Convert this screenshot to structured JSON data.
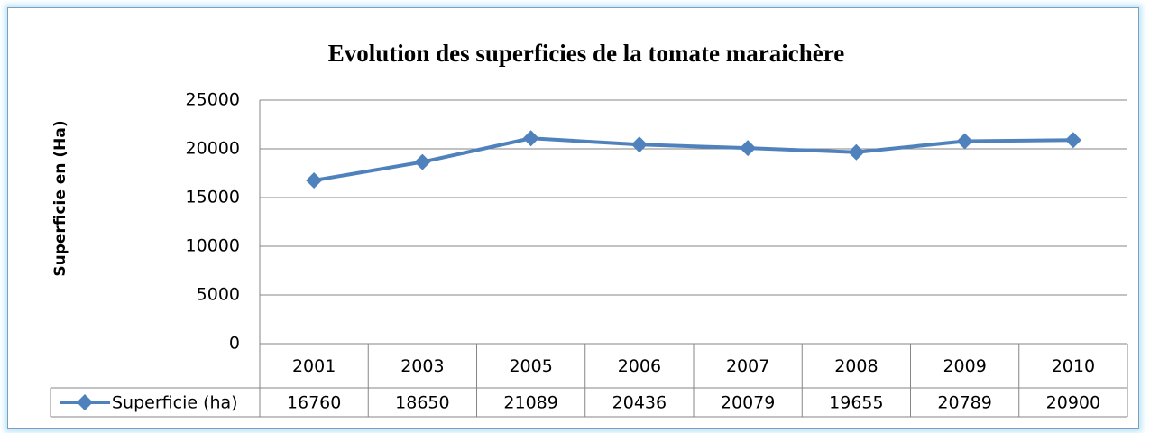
{
  "chart_data": {
    "type": "line",
    "title": "Evolution des superficies de la tomate maraichère",
    "y_label": "Superficie en (Ha)",
    "categories": [
      "2001",
      "2003",
      "2005",
      "2006",
      "2007",
      "2008",
      "2009",
      "2010"
    ],
    "series": [
      {
        "name": "Superficie (ha)",
        "color": "#4f81bd",
        "values": [
          16760,
          18650,
          21089,
          20436,
          20079,
          19655,
          20789,
          20900
        ]
      }
    ],
    "ylim": [
      0,
      25000
    ],
    "yticks": [
      0,
      5000,
      10000,
      15000,
      20000,
      25000
    ],
    "grid": true
  }
}
